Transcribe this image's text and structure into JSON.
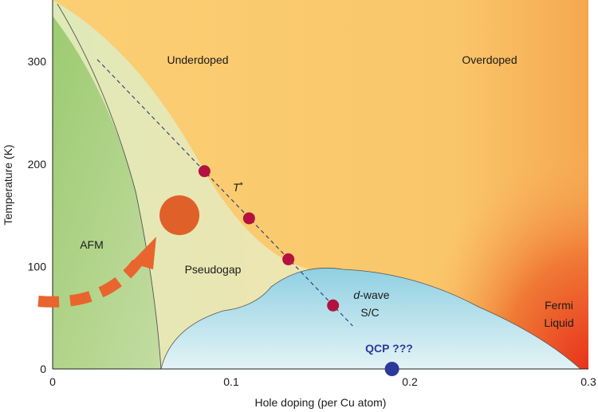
{
  "chart_data": {
    "type": "scatter",
    "title": "",
    "xlabel": "Hole doping (per Cu atom)",
    "ylabel": "Temperature (K)",
    "xlim": [
      0,
      0.3
    ],
    "ylim": [
      0,
      360
    ],
    "x_ticks": [
      "0",
      "0.1",
      "0.2",
      "0.3"
    ],
    "x_tick_values": [
      0,
      0.1,
      0.2,
      0.3
    ],
    "y_ticks": [
      "0",
      "100",
      "200",
      "300"
    ],
    "y_tick_values": [
      0,
      100,
      200,
      300
    ],
    "grid": false,
    "region_labels": {
      "underdoped": "Underdoped",
      "overdoped": "Overdoped",
      "afm": "AFM",
      "pseudogap": "Pseudogap",
      "dwave_d": "d",
      "dwave_rest": "-wave",
      "sc": "S/C",
      "fermi_line1": "Fermi",
      "fermi_line2": "Liquid",
      "tstar_t": "T",
      "tstar_star": "*",
      "qcp": "QCP ???"
    },
    "tstar_points": [
      {
        "x": 0.085,
        "y": 193
      },
      {
        "x": 0.11,
        "y": 147
      },
      {
        "x": 0.132,
        "y": 107
      },
      {
        "x": 0.157,
        "y": 62
      }
    ],
    "tstar_line": {
      "x": [
        0.025,
        0.168
      ],
      "y": [
        302,
        42
      ]
    },
    "qcp_point": {
      "x": 0.19,
      "y": 0
    },
    "highlight_point": {
      "x": 0.071,
      "y": 150
    },
    "colors": {
      "tstar": "#b3123f",
      "qcp": "#2b3a9a",
      "highlight": "#e0602a",
      "dashed_arrow": "#e8652d",
      "afm": "#a6cf7a",
      "pseudogap": "#e6eec0",
      "superconducting": "#a8dbe8",
      "background": "#fac56a",
      "fermi_liquid": "#e84020"
    }
  }
}
